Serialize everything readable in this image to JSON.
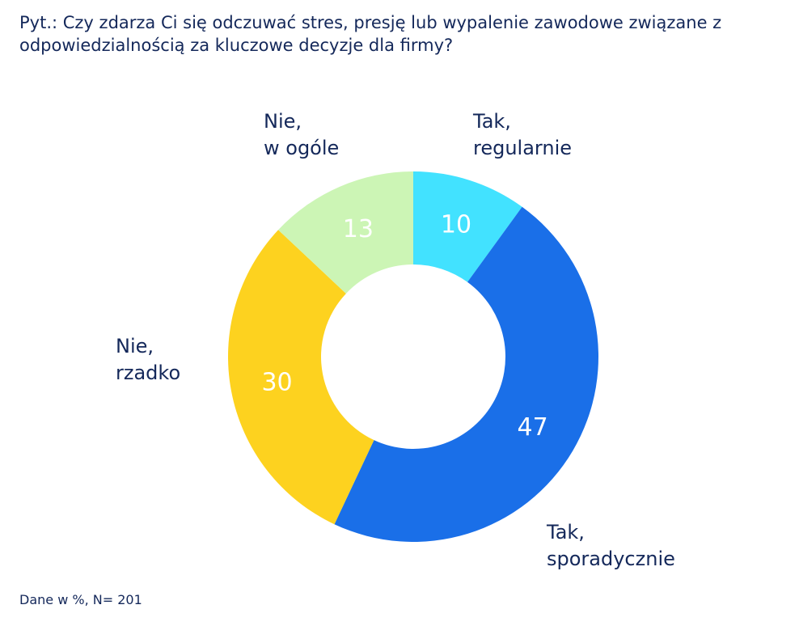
{
  "question": "Pyt.: Czy zdarza Ci się odczuwać stres, presję lub wypalenie zawodowe związane z odpowiedzialnością za kluczowe decyzje dla firmy?",
  "footnote": "Dane w %, N= 201",
  "labels": {
    "tak_regularnie": [
      "Tak,",
      "regularnie"
    ],
    "tak_sporadycznie": [
      "Tak,",
      "sporadycznie"
    ],
    "nie_rzadko": [
      "Nie,",
      "rzadko"
    ],
    "nie_w_ogole": [
      "Nie,",
      "w ogóle"
    ]
  },
  "chart_data": {
    "type": "pie",
    "variant": "donut",
    "unit": "%",
    "categories": [
      "Tak, regularnie",
      "Tak, sporadycznie",
      "Nie, rzadko",
      "Nie, w ogóle"
    ],
    "values": [
      10,
      47,
      30,
      13
    ],
    "colors": [
      "#42e2ff",
      "#1a6fe8",
      "#fdd21f",
      "#ccf5b5"
    ],
    "start_angle": "12 o'clock",
    "direction": "clockwise"
  }
}
